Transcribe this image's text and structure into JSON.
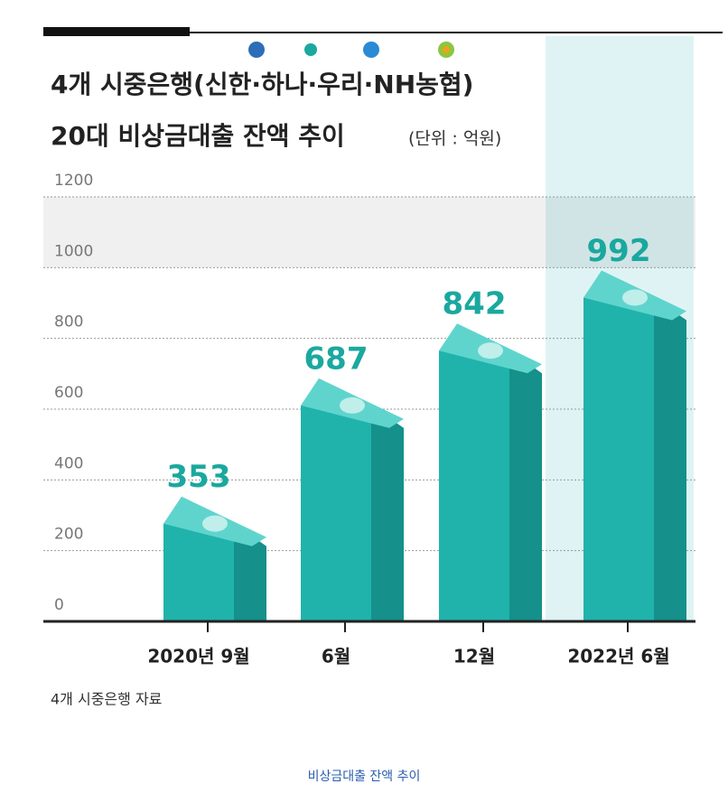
{
  "chart_data": {
    "type": "bar",
    "title": "4개 시중은행(신한·하나·우리·NH농협)",
    "subtitle": "20대 비상금대출 잔액 추이",
    "unit_label": "(단위 : 억원)",
    "categories": [
      "2020년 9월",
      "6월",
      "12월",
      "2022년 6월"
    ],
    "values": [
      353,
      687,
      842,
      992
    ],
    "color": "#20b3ab",
    "ylim": [
      0,
      1200
    ],
    "yticks": [
      0,
      200,
      400,
      600,
      800,
      1000,
      1200
    ],
    "grid": true,
    "source": "4개 시중은행 자료",
    "caption": "비상금대출 잔액 추이"
  }
}
